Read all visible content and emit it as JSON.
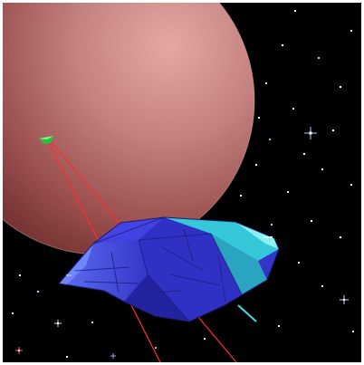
{
  "scene": {
    "view": "space-flight-cockpit-view",
    "planet": {
      "color": "#a85a5a",
      "highlight": "#e8a5a2",
      "shadow": "#5a1c1c"
    },
    "target_marker": {
      "color": "#22c33a"
    },
    "laser_beams": {
      "count": 2,
      "color": "#ff2d2d"
    },
    "ship": {
      "body_color": "#3d3ddc",
      "edge_color": "#3ee0e6",
      "panel_line_color": "#1c1c7a"
    },
    "stars": {
      "count": 30,
      "flare_count": 4
    }
  }
}
